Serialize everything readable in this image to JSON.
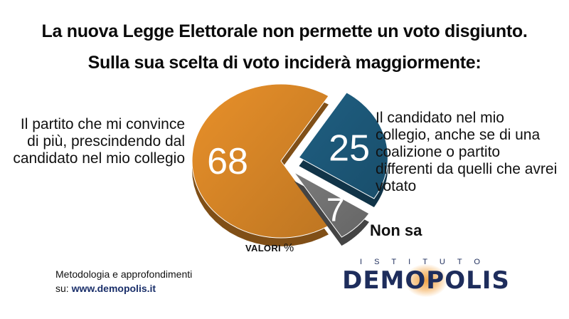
{
  "title": {
    "line1": "La nuova Legge Elettorale non permette un voto disgiunto.",
    "line2": "Sulla sua scelta di voto inciderà maggiormente:"
  },
  "labels": {
    "left": "Il partito che mi convince di più, prescindendo dal candidato nel mio collegio",
    "right": "Il candidato nel mio collegio, anche se di una coalizione o partito differenti da quelli che avrei votato",
    "nonsa": "Non sa"
  },
  "valori": "VALORI",
  "valori_unit": "%",
  "footer": {
    "line1": "Metodologia e approfondimenti",
    "prefix": "su:",
    "url": "www.demopolis.it"
  },
  "brand": {
    "top": "ISTITUTO",
    "main": "DEMOPOLIS"
  },
  "chart_data": {
    "type": "pie",
    "title": "Sulla sua scelta di voto inciderà maggiormente:",
    "unit": "%",
    "slices": [
      {
        "label": "Il partito che mi convince di più, prescindendo dal candidato nel mio collegio",
        "value": 68,
        "color": "#e8902a"
      },
      {
        "label": "Il candidato nel mio collegio, anche se di una coalizione o partito differenti da quelli che avrei votato",
        "value": 25,
        "color": "#1f5f82"
      },
      {
        "label": "Non sa",
        "value": 7,
        "color": "#7b7b7b"
      }
    ]
  }
}
